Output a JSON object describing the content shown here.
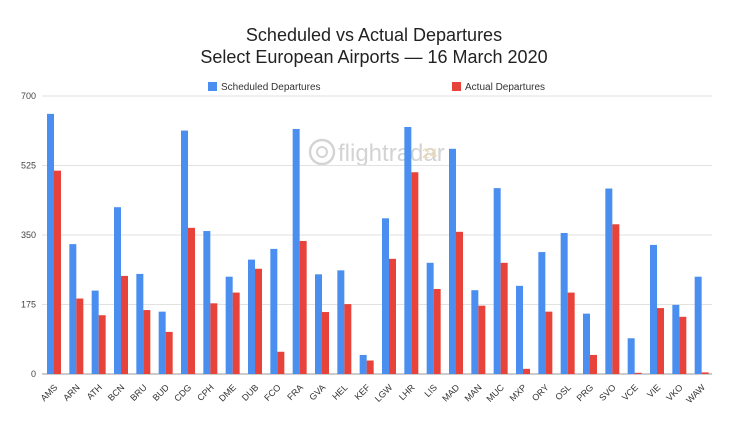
{
  "colors": {
    "scheduled": "#4a8ef0",
    "actual": "#e8433a",
    "grid": "#e2e2e2",
    "axis": "#999999"
  },
  "watermark": {
    "text": "flightradar",
    "number": "24"
  },
  "chart_data": {
    "type": "bar",
    "title": "Scheduled vs Actual Departures",
    "subtitle": "Select European Airports — 16 March 2020",
    "xlabel": "",
    "ylabel": "",
    "ylim": [
      0,
      700
    ],
    "yticks": [
      0,
      175,
      350,
      525,
      700
    ],
    "grid": true,
    "legend": "top-center",
    "categories": [
      "AMS",
      "ARN",
      "ATH",
      "BCN",
      "BRU",
      "BUD",
      "CDG",
      "CPH",
      "DME",
      "DUB",
      "FCO",
      "FRA",
      "GVA",
      "HEL",
      "KEF",
      "LGW",
      "LHR",
      "LIS",
      "MAD",
      "MAN",
      "MUC",
      "MXP",
      "ORY",
      "OSL",
      "PRG",
      "SVO",
      "VCE",
      "VIE",
      "VKO",
      "WAW"
    ],
    "series": [
      {
        "name": "Scheduled Departures",
        "values": [
          655,
          327,
          210,
          420,
          252,
          157,
          613,
          360,
          245,
          288,
          315,
          617,
          251,
          261,
          48,
          392,
          622,
          280,
          567,
          211,
          468,
          222,
          307,
          355,
          152,
          467,
          90,
          325,
          174,
          245
        ]
      },
      {
        "name": "Actual Departures",
        "values": [
          512,
          190,
          148,
          247,
          161,
          106,
          368,
          178,
          205,
          265,
          56,
          335,
          156,
          176,
          34,
          290,
          508,
          214,
          358,
          172,
          280,
          13,
          157,
          205,
          48,
          377,
          3,
          166,
          144,
          4
        ]
      }
    ]
  }
}
